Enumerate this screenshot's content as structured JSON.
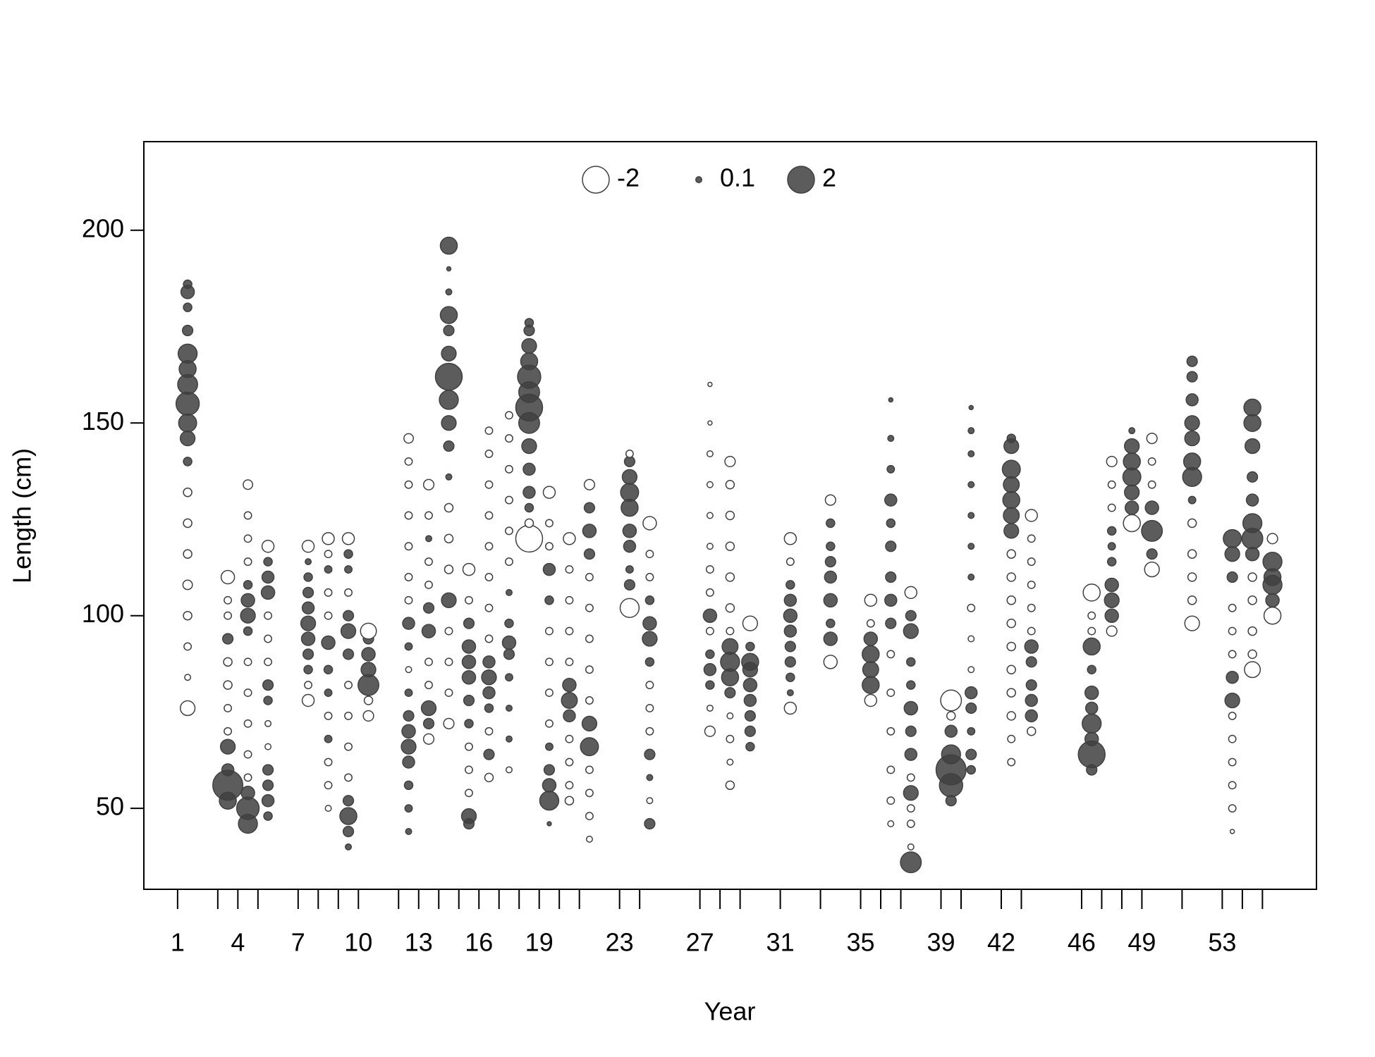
{
  "chart_data": {
    "type": "bubble",
    "xlabel": "Year",
    "ylabel": "Length (cm)",
    "xlim": [
      -0.68,
      57.69
    ],
    "ylim": [
      29,
      223
    ],
    "xticks": [
      1,
      4,
      7,
      10,
      13,
      16,
      19,
      23,
      27,
      31,
      35,
      39,
      42,
      46,
      49,
      53
    ],
    "x_minor_ticks": [
      3,
      5,
      8,
      9,
      12,
      14,
      15,
      17,
      18,
      20,
      21,
      24,
      28,
      29,
      33,
      36,
      37,
      40,
      43,
      47,
      48,
      51,
      54,
      55
    ],
    "yticks": [
      50,
      100,
      150,
      200
    ],
    "legend": [
      -2,
      0.1,
      2
    ],
    "pos_color": "#404040",
    "neg_color": "#ffffff",
    "stroke_color": "#404040",
    "columns": [
      {
        "x": 1.5,
        "y": [
          76,
          84,
          92,
          100,
          108,
          116,
          124,
          132,
          140,
          146,
          150,
          155,
          160,
          164,
          168,
          174,
          180,
          184,
          186
        ],
        "r": [
          -0.6,
          -0.1,
          -0.15,
          -0.2,
          -0.25,
          -0.2,
          -0.2,
          -0.2,
          0.2,
          0.6,
          0.9,
          1.5,
          1.1,
          0.8,
          1.0,
          0.3,
          0.2,
          0.5,
          0.2
        ]
      },
      {
        "x": 3.5,
        "y": [
          52,
          56,
          60,
          66,
          70,
          76,
          82,
          88,
          94,
          100,
          104,
          110
        ],
        "r": [
          0.8,
          2.5,
          0.4,
          0.6,
          -0.15,
          -0.15,
          -0.2,
          -0.2,
          0.3,
          -0.15,
          -0.15,
          -0.5
        ]
      },
      {
        "x": 4.5,
        "y": [
          46,
          50,
          54,
          58,
          64,
          72,
          80,
          88,
          96,
          100,
          104,
          108,
          114,
          120,
          126,
          134
        ],
        "r": [
          1.0,
          1.4,
          0.5,
          -0.15,
          -0.15,
          -0.15,
          -0.15,
          -0.15,
          0.2,
          0.6,
          0.5,
          0.2,
          -0.15,
          -0.15,
          -0.15,
          -0.25
        ]
      },
      {
        "x": 5.5,
        "y": [
          48,
          52,
          56,
          60,
          66,
          72,
          78,
          82,
          88,
          94,
          100,
          106,
          110,
          114,
          118
        ],
        "r": [
          0.2,
          0.4,
          0.3,
          0.3,
          -0.1,
          -0.1,
          0.2,
          0.3,
          -0.15,
          -0.15,
          -0.15,
          0.5,
          0.4,
          0.2,
          -0.4
        ]
      },
      {
        "x": 7.5,
        "y": [
          78,
          82,
          86,
          90,
          94,
          98,
          102,
          106,
          110,
          114,
          118
        ],
        "r": [
          -0.4,
          -0.15,
          0.2,
          0.3,
          0.5,
          0.6,
          0.4,
          0.3,
          0.2,
          0.1,
          -0.4
        ]
      },
      {
        "x": 8.5,
        "y": [
          50,
          56,
          62,
          68,
          74,
          80,
          86,
          93,
          100,
          106,
          112,
          116,
          120
        ],
        "r": [
          -0.1,
          -0.15,
          -0.15,
          0.15,
          -0.15,
          0.15,
          0.2,
          0.5,
          -0.15,
          -0.15,
          0.15,
          -0.15,
          -0.4
        ]
      },
      {
        "x": 9.5,
        "y": [
          40,
          44,
          48,
          52,
          58,
          66,
          74,
          82,
          90,
          96,
          100,
          106,
          112,
          116,
          120
        ],
        "r": [
          0.1,
          0.3,
          0.8,
          0.3,
          -0.15,
          -0.15,
          -0.15,
          -0.15,
          0.3,
          0.6,
          0.3,
          -0.15,
          0.15,
          0.2,
          -0.4
        ]
      },
      {
        "x": 10.5,
        "y": [
          74,
          78,
          82,
          86,
          90,
          94,
          96
        ],
        "r": [
          -0.3,
          -0.2,
          1.2,
          0.6,
          0.5,
          0.3,
          -0.7
        ]
      },
      {
        "x": 12.5,
        "y": [
          44,
          50,
          56,
          62,
          66,
          70,
          74,
          80,
          86,
          92,
          98,
          104,
          110,
          118,
          126,
          134,
          140,
          146
        ],
        "r": [
          0.1,
          0.15,
          0.2,
          0.4,
          0.6,
          0.5,
          0.3,
          0.15,
          -0.1,
          0.15,
          0.4,
          -0.15,
          -0.15,
          -0.15,
          -0.15,
          -0.15,
          -0.15,
          -0.25
        ]
      },
      {
        "x": 13.5,
        "y": [
          68,
          72,
          76,
          82,
          88,
          96,
          102,
          108,
          114,
          120,
          126,
          134
        ],
        "r": [
          -0.3,
          0.3,
          0.6,
          -0.15,
          -0.15,
          0.5,
          0.3,
          -0.15,
          -0.15,
          0.1,
          -0.15,
          -0.3
        ]
      },
      {
        "x": 14.5,
        "y": [
          72,
          80,
          88,
          96,
          104,
          112,
          120,
          128,
          136,
          144,
          150,
          156,
          162,
          168,
          174,
          178,
          184,
          190,
          196
        ],
        "r": [
          -0.3,
          -0.15,
          -0.15,
          -0.15,
          0.6,
          -0.2,
          -0.2,
          -0.2,
          0.1,
          0.3,
          0.6,
          1.0,
          2.0,
          0.6,
          0.3,
          0.8,
          0.1,
          0.05,
          0.8
        ]
      },
      {
        "x": 15.5,
        "y": [
          46,
          48,
          54,
          60,
          66,
          72,
          78,
          84,
          88,
          92,
          98,
          104,
          112
        ],
        "r": [
          0.3,
          0.6,
          -0.15,
          -0.15,
          -0.15,
          0.2,
          0.3,
          0.5,
          0.5,
          0.5,
          0.3,
          -0.15,
          -0.4
        ]
      },
      {
        "x": 16.5,
        "y": [
          58,
          64,
          70,
          76,
          80,
          84,
          88,
          94,
          102,
          110,
          118,
          126,
          134,
          142,
          148
        ],
        "r": [
          -0.2,
          0.3,
          -0.15,
          0.2,
          0.4,
          0.6,
          0.4,
          -0.15,
          -0.15,
          -0.15,
          -0.15,
          -0.15,
          -0.15,
          -0.15,
          -0.15
        ]
      },
      {
        "x": 17.5,
        "y": [
          60,
          68,
          76,
          84,
          90,
          93,
          98,
          106,
          114,
          122,
          130,
          138,
          146,
          152
        ],
        "r": [
          -0.1,
          0.1,
          0.1,
          0.15,
          0.3,
          0.5,
          0.2,
          0.1,
          -0.15,
          -0.15,
          -0.15,
          -0.15,
          -0.15,
          -0.15
        ]
      },
      {
        "x": 18.5,
        "y": [
          120,
          124,
          128,
          132,
          138,
          144,
          150,
          154,
          158,
          162,
          166,
          170,
          174,
          176
        ],
        "r": [
          -2,
          -0.2,
          0.2,
          0.4,
          0.4,
          0.6,
          1.2,
          2.0,
          1.2,
          1.5,
          0.8,
          0.6,
          0.3,
          0.2
        ]
      },
      {
        "x": 19.5,
        "y": [
          46,
          52,
          56,
          60,
          66,
          72,
          80,
          88,
          96,
          104,
          112,
          118,
          124,
          132
        ],
        "r": [
          0.05,
          1.0,
          0.5,
          0.3,
          0.15,
          -0.15,
          -0.15,
          -0.15,
          -0.15,
          0.2,
          0.4,
          -0.15,
          -0.15,
          -0.4
        ]
      },
      {
        "x": 20.5,
        "y": [
          52,
          56,
          62,
          68,
          74,
          78,
          82,
          88,
          96,
          104,
          112,
          120
        ],
        "r": [
          -0.2,
          -0.15,
          -0.15,
          -0.15,
          0.4,
          0.7,
          0.5,
          -0.15,
          -0.15,
          -0.15,
          -0.15,
          -0.4
        ]
      },
      {
        "x": 21.5,
        "y": [
          42,
          48,
          54,
          60,
          66,
          72,
          78,
          86,
          94,
          102,
          110,
          116,
          122,
          128,
          134
        ],
        "r": [
          -0.1,
          -0.15,
          -0.15,
          -0.15,
          0.9,
          0.6,
          -0.15,
          -0.15,
          -0.15,
          -0.15,
          -0.15,
          0.3,
          0.5,
          0.3,
          -0.3
        ]
      },
      {
        "x": 23.5,
        "y": [
          102,
          108,
          112,
          118,
          122,
          128,
          132,
          136,
          140,
          142
        ],
        "r": [
          -1.0,
          0.3,
          0.15,
          0.4,
          0.5,
          0.8,
          0.9,
          0.6,
          0.3,
          -0.15
        ]
      },
      {
        "x": 24.5,
        "y": [
          46,
          52,
          58,
          64,
          70,
          76,
          82,
          88,
          94,
          98,
          104,
          110,
          116,
          124
        ],
        "r": [
          0.3,
          -0.1,
          0.1,
          0.3,
          -0.15,
          -0.15,
          -0.15,
          0.2,
          0.6,
          0.5,
          0.2,
          -0.15,
          -0.15,
          -0.5
        ]
      },
      {
        "x": 27.5,
        "y": [
          70,
          76,
          82,
          86,
          90,
          96,
          100,
          106,
          112,
          118,
          126,
          134,
          142,
          150,
          160
        ],
        "r": [
          -0.3,
          -0.1,
          0.2,
          0.4,
          0.2,
          -0.15,
          0.5,
          -0.15,
          -0.15,
          -0.1,
          -0.1,
          -0.1,
          -0.1,
          -0.05,
          -0.05
        ]
      },
      {
        "x": 28.5,
        "y": [
          56,
          62,
          68,
          74,
          80,
          84,
          88,
          92,
          96,
          102,
          110,
          118,
          126,
          134,
          140
        ],
        "r": [
          -0.2,
          -0.1,
          -0.15,
          -0.1,
          0.3,
          0.8,
          1.0,
          0.7,
          -0.15,
          -0.2,
          -0.2,
          -0.2,
          -0.2,
          -0.2,
          -0.3
        ]
      },
      {
        "x": 29.5,
        "y": [
          66,
          70,
          74,
          78,
          82,
          86,
          88,
          92,
          98
        ],
        "r": [
          0.2,
          0.3,
          0.3,
          0.4,
          0.5,
          0.6,
          0.8,
          0.2,
          -0.6
        ]
      },
      {
        "x": 31.5,
        "y": [
          76,
          80,
          84,
          88,
          92,
          96,
          100,
          104,
          108,
          114,
          120
        ],
        "r": [
          -0.4,
          0.1,
          0.2,
          0.3,
          0.3,
          0.4,
          0.5,
          0.4,
          0.2,
          -0.15,
          -0.4
        ]
      },
      {
        "x": 33.5,
        "y": [
          88,
          94,
          98,
          104,
          110,
          114,
          118,
          124,
          130
        ],
        "r": [
          -0.5,
          0.5,
          0.2,
          0.5,
          0.4,
          0.3,
          0.2,
          0.2,
          -0.3
        ]
      },
      {
        "x": 35.5,
        "y": [
          78,
          82,
          86,
          90,
          94,
          98,
          104
        ],
        "r": [
          -0.4,
          0.8,
          0.7,
          0.8,
          0.5,
          -0.15,
          -0.4
        ]
      },
      {
        "x": 36.5,
        "y": [
          46,
          52,
          60,
          70,
          80,
          90,
          98,
          104,
          110,
          118,
          124,
          130,
          138,
          146,
          156
        ],
        "r": [
          -0.1,
          -0.15,
          -0.15,
          -0.15,
          -0.15,
          -0.15,
          0.3,
          0.4,
          0.3,
          0.3,
          0.2,
          0.4,
          0.15,
          0.1,
          0.05
        ]
      },
      {
        "x": 37.5,
        "y": [
          36,
          40,
          46,
          50,
          54,
          58,
          64,
          70,
          76,
          82,
          88,
          96,
          100,
          106
        ],
        "r": [
          1.2,
          -0.1,
          -0.15,
          -0.15,
          0.6,
          -0.15,
          0.4,
          0.3,
          0.5,
          0.2,
          0.2,
          0.6,
          0.3,
          -0.4
        ]
      },
      {
        "x": 39.5,
        "y": [
          52,
          56,
          60,
          64,
          70,
          74,
          78
        ],
        "r": [
          0.3,
          1.5,
          2.5,
          1.0,
          0.4,
          -0.2,
          -1.2
        ]
      },
      {
        "x": 40.5,
        "y": [
          60,
          64,
          70,
          76,
          80,
          86,
          94,
          102,
          110,
          118,
          126,
          134,
          142,
          148,
          154
        ],
        "r": [
          0.2,
          0.3,
          0.15,
          0.3,
          0.4,
          -0.1,
          -0.1,
          -0.15,
          0.1,
          0.1,
          0.1,
          0.1,
          0.1,
          0.1,
          0.05
        ]
      },
      {
        "x": 42.5,
        "y": [
          62,
          68,
          74,
          80,
          86,
          92,
          98,
          104,
          110,
          116,
          122,
          126,
          130,
          134,
          138,
          144,
          146
        ],
        "r": [
          -0.15,
          -0.15,
          -0.2,
          -0.2,
          -0.2,
          -0.2,
          -0.2,
          -0.2,
          -0.2,
          -0.2,
          0.6,
          0.7,
          0.8,
          0.7,
          0.9,
          0.6,
          0.2
        ]
      },
      {
        "x": 43.5,
        "y": [
          70,
          74,
          78,
          82,
          88,
          92,
          96,
          102,
          108,
          114,
          120,
          126
        ],
        "r": [
          -0.2,
          0.4,
          0.4,
          0.3,
          0.3,
          0.5,
          -0.15,
          -0.15,
          -0.15,
          -0.15,
          -0.15,
          -0.4
        ]
      },
      {
        "x": 46.5,
        "y": [
          60,
          64,
          68,
          72,
          76,
          80,
          86,
          92,
          96,
          100,
          106
        ],
        "r": [
          0.3,
          2.0,
          0.5,
          1.0,
          0.4,
          0.5,
          0.2,
          0.8,
          -0.15,
          -0.15,
          -0.8
        ]
      },
      {
        "x": 47.5,
        "y": [
          96,
          100,
          104,
          108,
          114,
          118,
          122,
          128,
          134,
          140
        ],
        "r": [
          -0.3,
          0.5,
          0.6,
          0.5,
          0.2,
          0.15,
          0.2,
          -0.15,
          -0.15,
          -0.3
        ]
      },
      {
        "x": 48.5,
        "y": [
          124,
          128,
          132,
          136,
          140,
          144,
          148
        ],
        "r": [
          -0.8,
          0.5,
          0.6,
          0.9,
          0.8,
          0.6,
          0.1
        ]
      },
      {
        "x": 49.5,
        "y": [
          112,
          116,
          122,
          128,
          134,
          140,
          146
        ],
        "r": [
          -0.6,
          0.3,
          1.2,
          0.5,
          -0.15,
          -0.15,
          -0.3
        ]
      },
      {
        "x": 51.5,
        "y": [
          98,
          104,
          110,
          116,
          124,
          130,
          136,
          140,
          146,
          150,
          156,
          162,
          166
        ],
        "r": [
          -0.6,
          -0.2,
          -0.2,
          -0.2,
          -0.2,
          0.15,
          1.0,
          0.8,
          0.6,
          0.6,
          0.4,
          0.3,
          0.3
        ]
      },
      {
        "x": 53.5,
        "y": [
          44,
          50,
          56,
          62,
          68,
          74,
          78,
          84,
          90,
          96,
          102,
          110,
          116,
          120
        ],
        "r": [
          -0.05,
          -0.15,
          -0.15,
          -0.15,
          -0.15,
          -0.15,
          0.6,
          0.4,
          -0.15,
          -0.15,
          -0.15,
          0.3,
          0.6,
          0.9
        ]
      },
      {
        "x": 54.5,
        "y": [
          86,
          90,
          96,
          104,
          110,
          116,
          120,
          124,
          130,
          136,
          144,
          150,
          154
        ],
        "r": [
          -0.7,
          -0.2,
          -0.2,
          -0.2,
          -0.2,
          0.5,
          1.2,
          1.0,
          0.4,
          0.3,
          0.6,
          0.8,
          0.8
        ]
      },
      {
        "x": 55.5,
        "y": [
          100,
          104,
          108,
          110,
          114,
          120
        ],
        "r": [
          -0.8,
          0.5,
          1.0,
          0.8,
          1.0,
          -0.3
        ]
      }
    ]
  }
}
